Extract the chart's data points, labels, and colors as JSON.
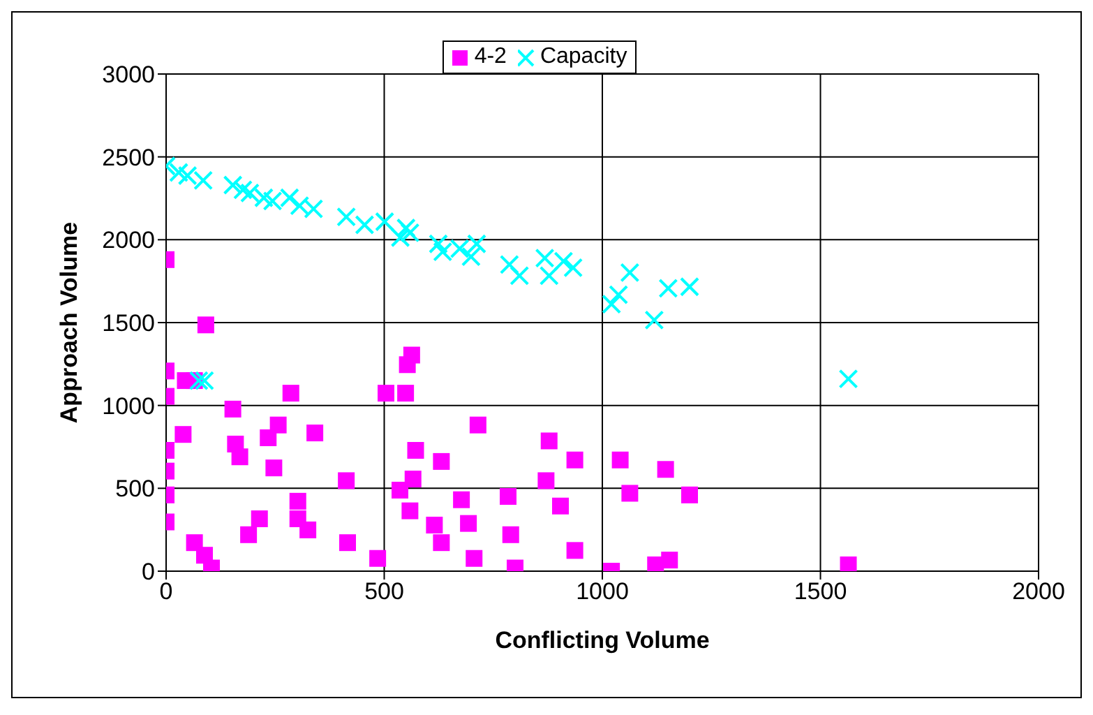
{
  "chart_data": {
    "type": "scatter",
    "xlabel": "Conflicting Volume",
    "ylabel": "Approach Volume",
    "xlim": [
      0,
      2000
    ],
    "xticks": [
      0,
      500,
      1000,
      1500,
      2000
    ],
    "ylim": [
      0,
      3000
    ],
    "yticks": [
      0,
      500,
      1000,
      1500,
      2000,
      2500,
      3000
    ],
    "grid": true,
    "legend": "top",
    "series": [
      {
        "name": "4-2",
        "color": "#ff00ff",
        "marker": "square",
        "x": [
          0,
          91,
          0,
          0,
          44,
          65,
          153,
          286,
          39,
          0,
          0,
          0,
          0,
          159,
          169,
          234,
          257,
          341,
          247,
          413,
          302,
          302,
          325,
          214,
          189,
          65,
          88,
          104,
          416,
          485,
          504,
          549,
          553,
          563,
          715,
          572,
          631,
          566,
          536,
          559,
          615,
          631,
          677,
          693,
          706,
          784,
          790,
          800,
          878,
          937,
          871,
          904,
          937,
          1041,
          1063,
          1145,
          1200,
          1021,
          1122,
          1154,
          1564
        ],
        "values": [
          1880,
          1486,
          1208,
          1055,
          1150,
          1150,
          978,
          1074,
          825,
          729,
          604,
          460,
          297,
          767,
          690,
          805,
          882,
          834,
          623,
          546,
          422,
          316,
          249,
          316,
          220,
          172,
          96,
          19,
          172,
          77,
          1074,
          1074,
          1246,
          1304,
          882,
          729,
          662,
          556,
          489,
          364,
          278,
          172,
          431,
          288,
          77,
          451,
          220,
          19,
          786,
          671,
          546,
          393,
          125,
          671,
          470,
          614,
          460,
          0,
          38,
          67,
          38
        ]
      },
      {
        "name": "Capacity",
        "color": "#00ffff",
        "marker": "cross",
        "x": [
          0,
          29,
          49,
          85,
          153,
          176,
          192,
          224,
          244,
          283,
          306,
          338,
          413,
          455,
          501,
          550,
          559,
          537,
          624,
          634,
          673,
          699,
          712,
          787,
          88,
          75,
          810,
          868,
          878,
          911,
          933,
          1021,
          1037,
          1063,
          1119,
          1151,
          1200,
          1564
        ],
        "values": [
          2445,
          2406,
          2387,
          2358,
          2330,
          2301,
          2282,
          2253,
          2234,
          2253,
          2205,
          2186,
          2138,
          2090,
          2109,
          2071,
          2042,
          2013,
          1975,
          1927,
          1946,
          1898,
          1975,
          1850,
          1150,
          1150,
          1783,
          1889,
          1783,
          1870,
          1831,
          1611,
          1668,
          1802,
          1515,
          1707,
          1716,
          1160
        ]
      }
    ]
  }
}
